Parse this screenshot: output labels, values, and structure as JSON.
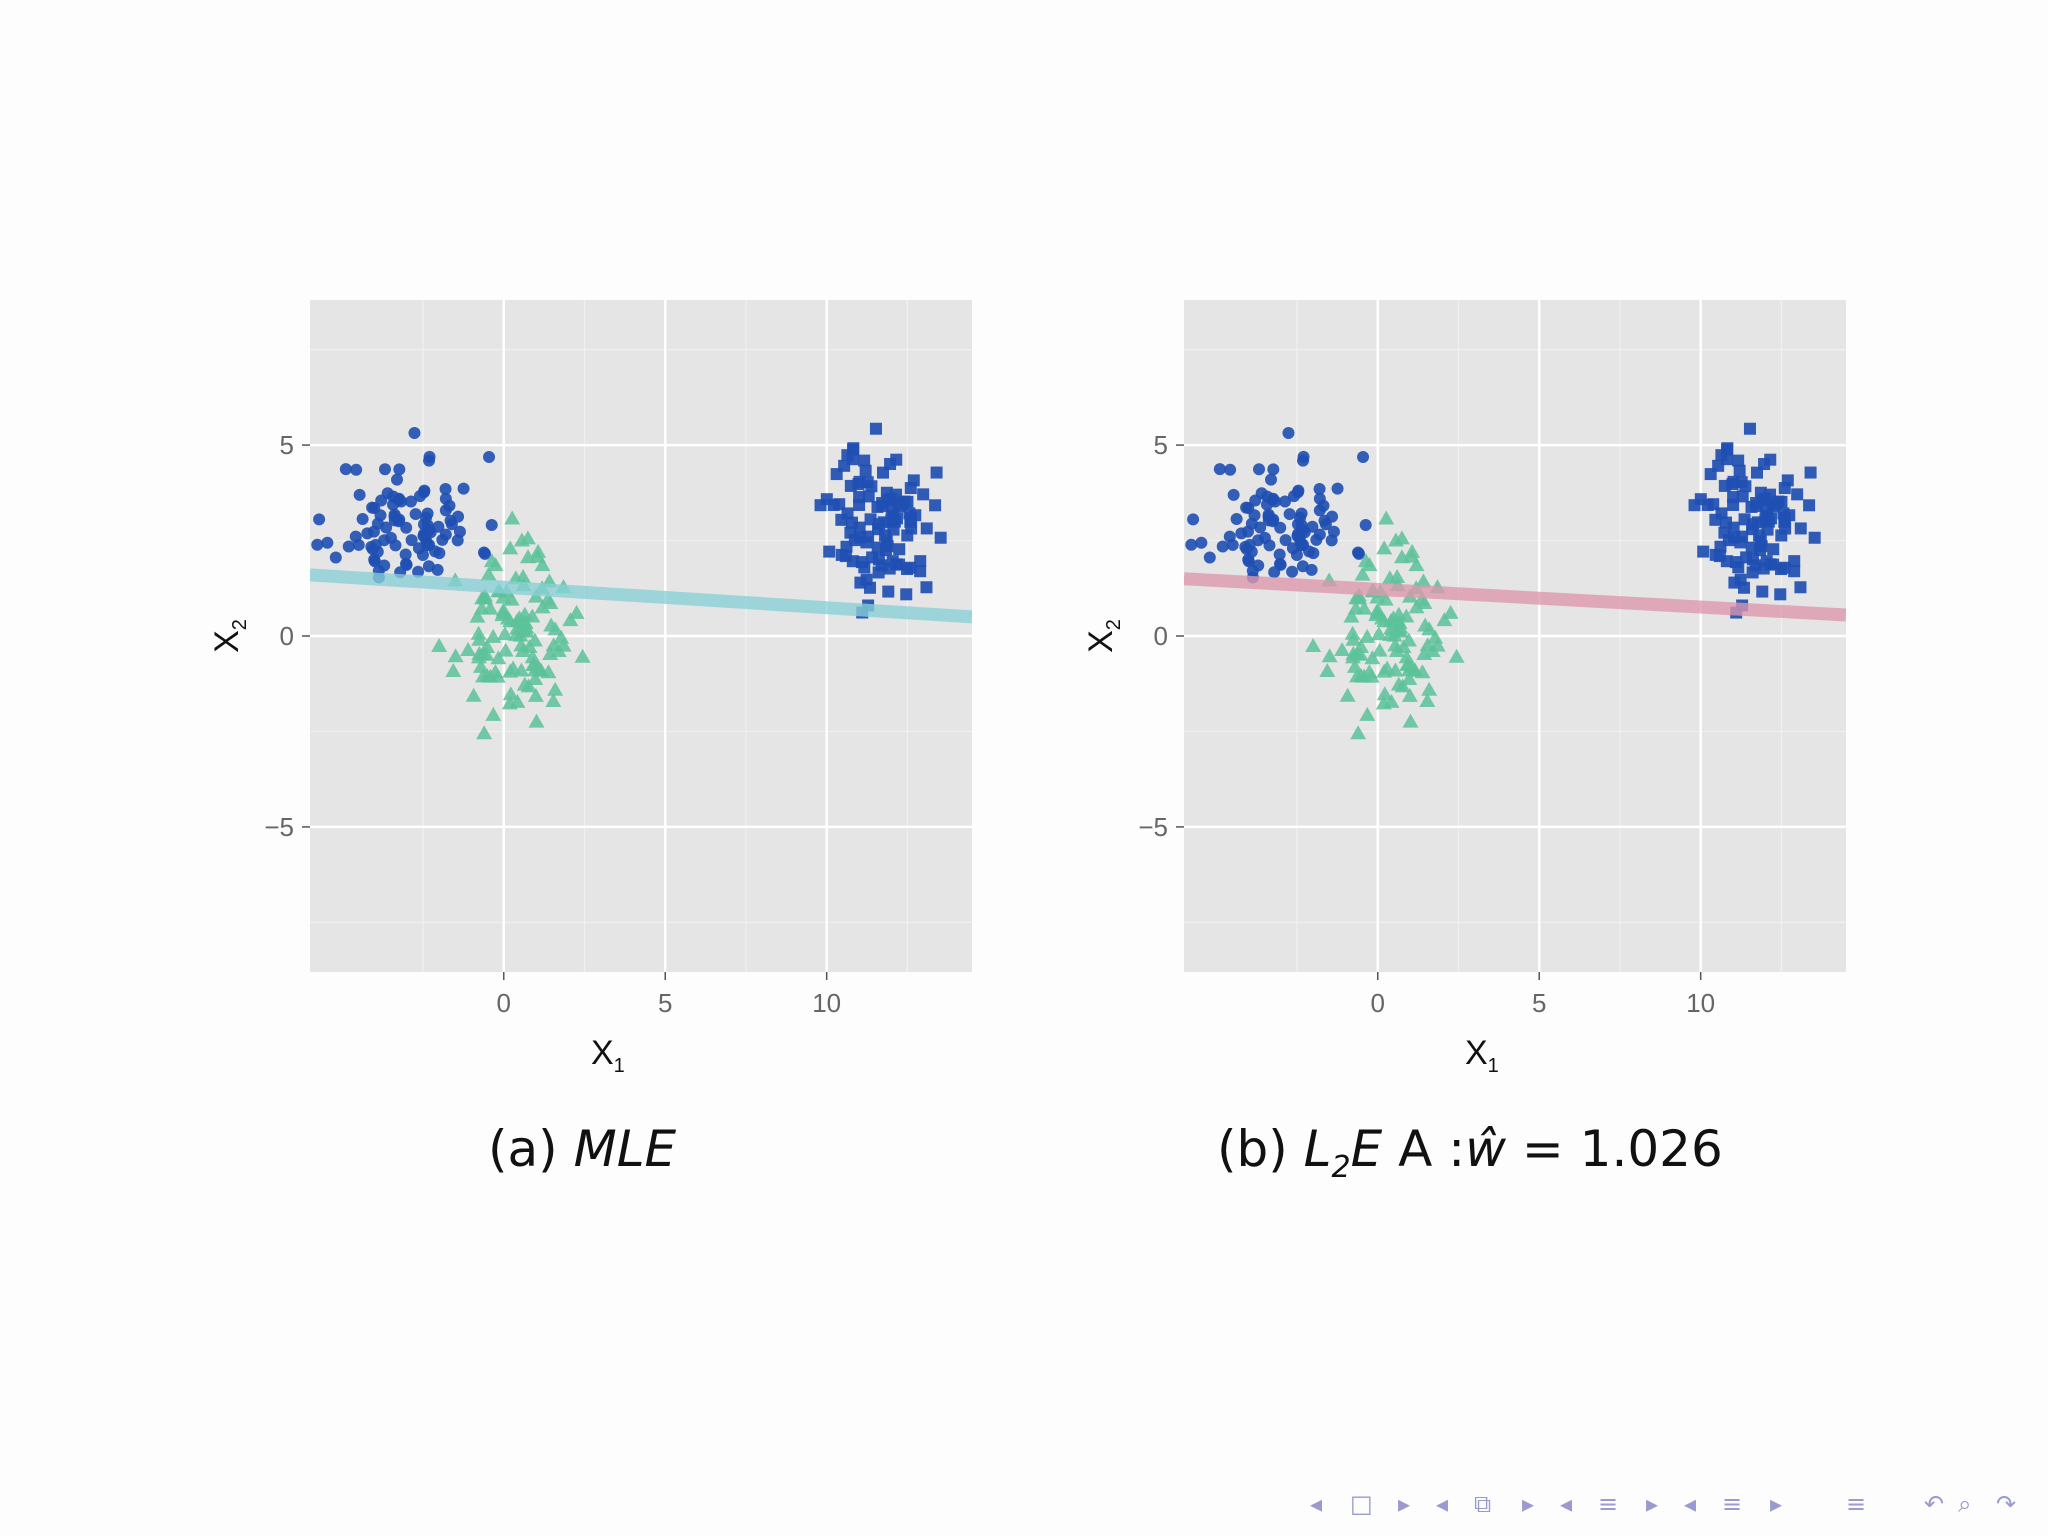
{
  "slide": {
    "panels": [
      {
        "id": "a",
        "caption_prefix": "(a)",
        "caption_method": "MLE",
        "line_color": "#88cfd6"
      },
      {
        "id": "b",
        "caption_prefix": "(b)",
        "caption_method_base": "L",
        "caption_method_sub": "2",
        "caption_method_rest": "E",
        "caption_suffix": " A :",
        "caption_what": "ŵ",
        "caption_equals": " = 1.026",
        "line_color": "#dd97ad"
      }
    ]
  },
  "chart_data": [
    {
      "type": "scatter",
      "panel": "a",
      "title": "",
      "xlabel": "X",
      "xlabel_sub": "1",
      "ylabel": "X",
      "ylabel_sub": "2",
      "xlim": [
        -6,
        14.5
      ],
      "ylim": [
        -8.8,
        8.8
      ],
      "xticks": [
        0,
        5,
        10
      ],
      "xtick_labels": [
        "0",
        "5",
        "10"
      ],
      "yticks": [
        -5,
        0,
        5
      ],
      "ytick_labels": [
        "−5",
        "0",
        "5"
      ],
      "grid": true,
      "background": "#e5e5e5",
      "series": [
        {
          "marker": "circle",
          "color": "#1f4fb3",
          "center": [
            -3,
            3
          ],
          "spread": [
            1.1,
            0.85
          ],
          "n": 95,
          "seed": 11
        },
        {
          "marker": "triangle",
          "color": "#5cc29a",
          "center": [
            0.3,
            0
          ],
          "spread": [
            0.85,
            1.0
          ],
          "n": 110,
          "seed": 23
        },
        {
          "marker": "square",
          "color": "#1f4fb3",
          "center": [
            11.7,
            3.0
          ],
          "spread": [
            0.8,
            1.0
          ],
          "n": 100,
          "seed": 37
        }
      ],
      "fit_line": {
        "x": [
          -6,
          14.5
        ],
        "y": [
          1.6,
          0.5
        ],
        "color": "#88cfd6"
      }
    },
    {
      "type": "scatter",
      "panel": "b",
      "title": "",
      "xlabel": "X",
      "xlabel_sub": "1",
      "ylabel": "X",
      "ylabel_sub": "2",
      "xlim": [
        -6,
        14.5
      ],
      "ylim": [
        -8.8,
        8.8
      ],
      "xticks": [
        0,
        5,
        10
      ],
      "xtick_labels": [
        "0",
        "5",
        "10"
      ],
      "yticks": [
        -5,
        0,
        5
      ],
      "ytick_labels": [
        "−5",
        "0",
        "5"
      ],
      "grid": true,
      "background": "#e5e5e5",
      "series": [
        {
          "marker": "circle",
          "color": "#1f4fb3",
          "center": [
            -3,
            3
          ],
          "spread": [
            1.1,
            0.85
          ],
          "n": 95,
          "seed": 11
        },
        {
          "marker": "triangle",
          "color": "#5cc29a",
          "center": [
            0.3,
            0
          ],
          "spread": [
            0.85,
            1.0
          ],
          "n": 110,
          "seed": 23
        },
        {
          "marker": "square",
          "color": "#1f4fb3",
          "center": [
            11.7,
            3.0
          ],
          "spread": [
            0.8,
            1.0
          ],
          "n": 100,
          "seed": 37
        }
      ],
      "fit_line": {
        "x": [
          -6,
          14.5
        ],
        "y": [
          1.5,
          0.55
        ],
        "color": "#dd97ad"
      }
    }
  ],
  "nav": {
    "icons": [
      "◂",
      "□",
      "▸",
      "◂",
      "⧉",
      "▸",
      "◂",
      "≡",
      "▸",
      "◂",
      "≡",
      "▸",
      "≡",
      "↶",
      "⌕",
      "↷"
    ]
  }
}
